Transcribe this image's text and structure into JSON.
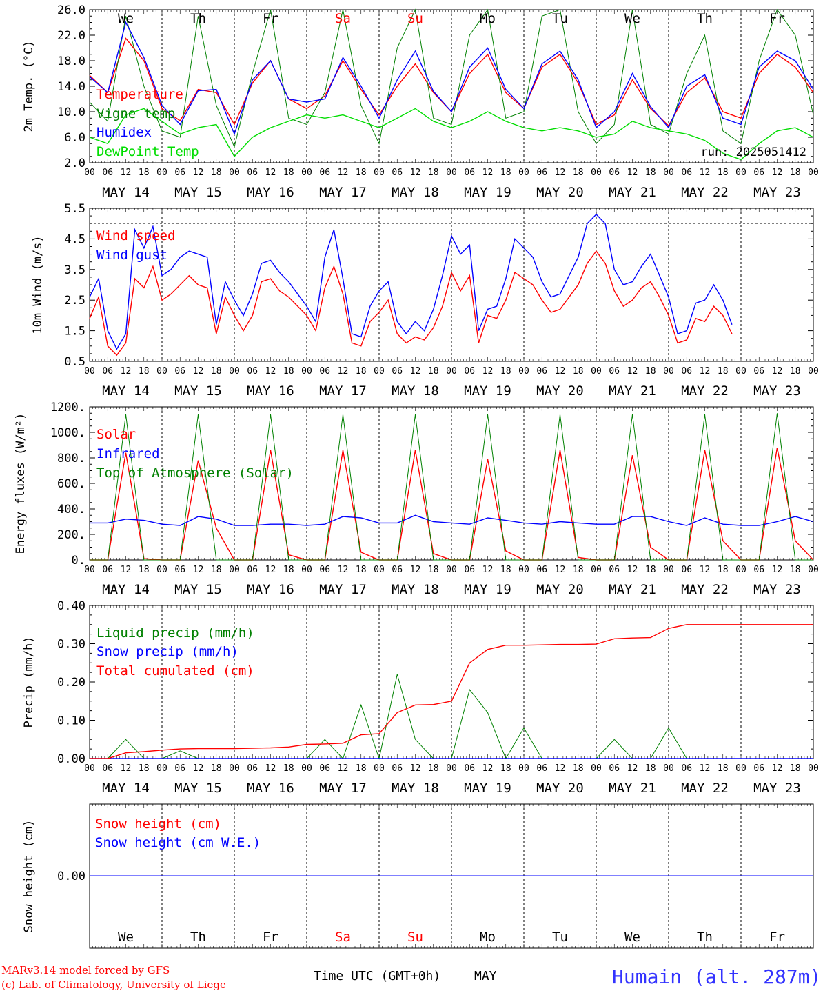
{
  "days": [
    "We",
    "Th",
    "Fr",
    "Sa",
    "Su",
    "Mo",
    "Tu",
    "We",
    "Th",
    "Fr"
  ],
  "weekend": [
    false,
    false,
    false,
    true,
    true,
    false,
    false,
    false,
    false,
    false
  ],
  "dates": [
    "MAY 14",
    "MAY 15",
    "MAY 16",
    "MAY 17",
    "MAY 18",
    "MAY 19",
    "MAY 20",
    "MAY 21",
    "MAY 22",
    "MAY 23"
  ],
  "day_numbers": [
    "14",
    "15",
    "16",
    "17",
    "18",
    "19",
    "20",
    "21",
    "22",
    "23"
  ],
  "hour_ticks": [
    "00",
    "06",
    "12",
    "18"
  ],
  "hour_end": "00",
  "colors": {
    "red": "#ff0000",
    "green": "#008000",
    "blue": "#0000ff",
    "lime": "#00dd00"
  },
  "footer": {
    "model": "MARv3.14 model forced by GFS",
    "copyright": "(c) Lab. of Climatology, University of Liege",
    "xlabel": "Time UTC (GMT+0h)",
    "month": "MAY",
    "station": "Humain (alt. 287m)"
  },
  "chart_data": [
    {
      "type": "line",
      "ylabel": "2m Temp. (°C)",
      "ylim": [
        2.0,
        26.0
      ],
      "yticks": [
        "26.0",
        "22.0",
        "18.0",
        "14.0",
        "10.0",
        "6.0",
        "2.0"
      ],
      "annotation": "run: 2025051412",
      "x_hours_per_point": 6,
      "series": [
        {
          "name": "Temperature",
          "color": "#ff0000",
          "values": [
            15.7,
            13.0,
            21.5,
            18.0,
            10.5,
            8.6,
            13.5,
            13.0,
            8.0,
            14.5,
            18.0,
            12.0,
            10.5,
            12.5,
            18.0,
            13.5,
            9.5,
            14.0,
            17.5,
            13.0,
            10.0,
            16.0,
            19.0,
            13.0,
            10.5,
            17.0,
            19.0,
            14.5,
            8.0,
            9.5,
            15.0,
            10.5,
            7.8,
            13.0,
            15.3,
            10.0,
            9.0,
            16.0,
            19.0,
            17.0,
            13.0
          ]
        },
        {
          "name": "Vigne temp",
          "color": "#008000",
          "values": [
            11.5,
            8.5,
            25.0,
            14.0,
            7.0,
            6.0,
            25.0,
            11.0,
            4.5,
            16.0,
            26.0,
            9.0,
            8.0,
            13.0,
            26.0,
            11.0,
            5.0,
            20.0,
            26.0,
            9.0,
            8.0,
            22.0,
            26.0,
            9.0,
            10.0,
            25.0,
            26.0,
            10.0,
            5.0,
            8.0,
            26.0,
            8.0,
            6.5,
            16.0,
            22.0,
            7.0,
            5.0,
            18.0,
            26.0,
            22.0,
            9.5
          ]
        },
        {
          "name": "Humidex",
          "color": "#0000ff",
          "values": [
            15.5,
            13.0,
            24.0,
            18.5,
            11.0,
            8.0,
            13.3,
            13.5,
            6.5,
            15.0,
            18.0,
            12.0,
            11.5,
            12.0,
            18.5,
            14.0,
            9.0,
            15.0,
            19.5,
            13.2,
            10.0,
            17.0,
            20.0,
            13.5,
            10.5,
            17.5,
            19.5,
            15.0,
            7.5,
            10.0,
            16.0,
            10.8,
            7.5,
            14.0,
            15.8,
            9.0,
            8.0,
            17.0,
            19.5,
            18.0,
            13.5
          ]
        },
        {
          "name": "DewPoint Temp",
          "color": "#00dd00",
          "values": [
            6.0,
            5.0,
            9.5,
            10.5,
            8.5,
            6.5,
            7.5,
            8.0,
            3.0,
            6.0,
            7.5,
            8.5,
            9.5,
            9.0,
            9.5,
            8.5,
            7.5,
            9.0,
            10.5,
            8.5,
            7.5,
            8.5,
            10.0,
            8.5,
            7.5,
            7.0,
            7.5,
            7.0,
            6.0,
            6.5,
            8.5,
            7.5,
            7.0,
            6.5,
            5.5,
            3.5,
            2.5,
            5.0,
            7.0,
            7.5,
            6.0
          ]
        }
      ]
    },
    {
      "type": "line",
      "ylabel": "10m Wind (m/s)",
      "ylim": [
        0.5,
        5.5
      ],
      "yticks": [
        "5.5",
        "4.5",
        "3.5",
        "2.5",
        "1.5",
        "0.5"
      ],
      "reference_line": 5.0,
      "x_hours_per_point": 3,
      "series": [
        {
          "name": "Wind speed",
          "color": "#ff0000",
          "values": [
            1.9,
            2.6,
            1.0,
            0.7,
            1.1,
            3.2,
            2.9,
            3.6,
            2.5,
            2.7,
            3.0,
            3.3,
            3.0,
            2.9,
            1.4,
            2.6,
            2.0,
            1.5,
            2.0,
            3.1,
            3.2,
            2.8,
            2.6,
            2.3,
            2.0,
            1.5,
            2.9,
            3.6,
            2.7,
            1.1,
            1.0,
            1.8,
            2.1,
            2.5,
            1.4,
            1.1,
            1.3,
            1.2,
            1.6,
            2.3,
            3.4,
            2.8,
            3.3,
            1.1,
            2.0,
            1.9,
            2.5,
            3.4,
            3.2,
            3.0,
            2.5,
            2.1,
            2.2,
            2.6,
            3.0,
            3.7,
            4.1,
            3.7,
            2.8,
            2.3,
            2.5,
            2.9,
            3.1,
            2.6,
            2.0,
            1.1,
            1.2,
            1.9,
            1.8,
            2.3,
            2.0,
            1.4
          ]
        },
        {
          "name": "Wind gust",
          "color": "#0000ff",
          "values": [
            2.6,
            3.2,
            1.5,
            0.9,
            1.4,
            4.8,
            4.2,
            4.9,
            3.3,
            3.5,
            3.9,
            4.1,
            4.0,
            3.9,
            1.7,
            3.1,
            2.5,
            2.0,
            2.7,
            3.7,
            3.8,
            3.4,
            3.1,
            2.7,
            2.3,
            1.8,
            3.9,
            4.8,
            3.2,
            1.4,
            1.3,
            2.3,
            2.8,
            3.1,
            1.8,
            1.4,
            1.8,
            1.5,
            2.2,
            3.3,
            4.6,
            4.0,
            4.3,
            1.5,
            2.2,
            2.3,
            3.2,
            4.5,
            4.2,
            3.9,
            3.1,
            2.6,
            2.7,
            3.3,
            3.9,
            5.0,
            5.3,
            5.0,
            3.5,
            3.0,
            3.1,
            3.6,
            4.0,
            3.3,
            2.6,
            1.4,
            1.5,
            2.4,
            2.5,
            3.0,
            2.5,
            1.7
          ]
        }
      ]
    },
    {
      "type": "line",
      "ylabel": "Energy fluxes (W/m²)",
      "ylim": [
        0,
        1200
      ],
      "yticks": [
        "1200.",
        "1000.",
        "800.",
        "600.",
        "400.",
        "200.",
        "0."
      ],
      "x_hours_per_point": 6,
      "series": [
        {
          "name": "Solar",
          "color": "#ff0000",
          "values": [
            0,
            0,
            840,
            10,
            0,
            0,
            780,
            250,
            0,
            0,
            860,
            40,
            0,
            0,
            860,
            60,
            0,
            0,
            860,
            50,
            0,
            0,
            790,
            70,
            0,
            0,
            860,
            20,
            0,
            0,
            820,
            100,
            0,
            0,
            860,
            150,
            0,
            0,
            880,
            150,
            0
          ]
        },
        {
          "name": "Infrared",
          "color": "#0000ff",
          "values": [
            290,
            290,
            320,
            310,
            280,
            270,
            340,
            320,
            270,
            270,
            280,
            280,
            270,
            280,
            340,
            330,
            290,
            290,
            350,
            300,
            290,
            280,
            330,
            310,
            290,
            280,
            300,
            290,
            280,
            280,
            340,
            340,
            300,
            270,
            330,
            280,
            270,
            270,
            300,
            340,
            300
          ]
        },
        {
          "name": "Top of Atmosphere (Solar)",
          "color": "#008000",
          "values": [
            0,
            0,
            1140,
            0,
            0,
            0,
            1140,
            0,
            0,
            0,
            1140,
            0,
            0,
            0,
            1140,
            0,
            0,
            0,
            1140,
            0,
            0,
            0,
            1140,
            0,
            0,
            0,
            1140,
            0,
            0,
            0,
            1140,
            0,
            0,
            0,
            1140,
            0,
            0,
            0,
            1150,
            0,
            0
          ]
        }
      ]
    },
    {
      "type": "line",
      "ylabel": "Precip (mm/h)",
      "ylim": [
        0,
        0.4
      ],
      "yticks": [
        "0.40",
        "0.30",
        "0.20",
        "0.10",
        "0.00"
      ],
      "x_hours_per_point": 6,
      "series": [
        {
          "name": "Liquid precip (mm/h)",
          "color": "#008000",
          "values": [
            0,
            0,
            0.05,
            0,
            0,
            0.02,
            0,
            0,
            0,
            0,
            0,
            0,
            0,
            0.05,
            0,
            0.14,
            0,
            0.22,
            0.05,
            0,
            0,
            0.18,
            0.12,
            0,
            0.08,
            0,
            0,
            0,
            0,
            0.05,
            0,
            0,
            0.08,
            0,
            0,
            0,
            0,
            0,
            0,
            0,
            0
          ]
        },
        {
          "name": "Snow precip (mm/h)",
          "color": "#0000ff",
          "values": [
            0,
            0,
            0,
            0,
            0,
            0,
            0,
            0,
            0,
            0,
            0,
            0,
            0,
            0,
            0,
            0,
            0,
            0,
            0,
            0,
            0,
            0,
            0,
            0,
            0,
            0,
            0,
            0,
            0,
            0,
            0,
            0,
            0,
            0,
            0,
            0,
            0,
            0,
            0,
            0,
            0
          ]
        },
        {
          "name": "Total cumulated (cm)",
          "color": "#ff0000",
          "values": [
            0,
            0,
            0.015,
            0.018,
            0.022,
            0.025,
            0.026,
            0.026,
            0.026,
            0.027,
            0.028,
            0.03,
            0.037,
            0.038,
            0.04,
            0.062,
            0.065,
            0.12,
            0.14,
            0.141,
            0.15,
            0.25,
            0.285,
            0.296,
            0.296,
            0.297,
            0.298,
            0.298,
            0.299,
            0.313,
            0.315,
            0.316,
            0.34,
            0.35,
            0.35,
            0.35,
            0.35,
            0.35,
            0.35,
            0.35,
            0.35
          ]
        }
      ]
    },
    {
      "type": "line",
      "ylabel": "Snow height (cm)",
      "yticks": [
        "0.00"
      ],
      "x_hours_per_point": 6,
      "series": [
        {
          "name": "Snow height (cm)",
          "color": "#ff0000",
          "values": [
            0,
            0,
            0,
            0,
            0,
            0,
            0,
            0,
            0,
            0,
            0,
            0,
            0,
            0,
            0,
            0,
            0,
            0,
            0,
            0,
            0,
            0,
            0,
            0,
            0,
            0,
            0,
            0,
            0,
            0,
            0,
            0,
            0,
            0,
            0,
            0,
            0,
            0,
            0,
            0,
            0
          ]
        },
        {
          "name": "Snow height (cm W.E.)",
          "color": "#0000ff",
          "values": [
            0,
            0,
            0,
            0,
            0,
            0,
            0,
            0,
            0,
            0,
            0,
            0,
            0,
            0,
            0,
            0,
            0,
            0,
            0,
            0,
            0,
            0,
            0,
            0,
            0,
            0,
            0,
            0,
            0,
            0,
            0,
            0,
            0,
            0,
            0,
            0,
            0,
            0,
            0,
            0,
            0
          ]
        }
      ]
    }
  ]
}
